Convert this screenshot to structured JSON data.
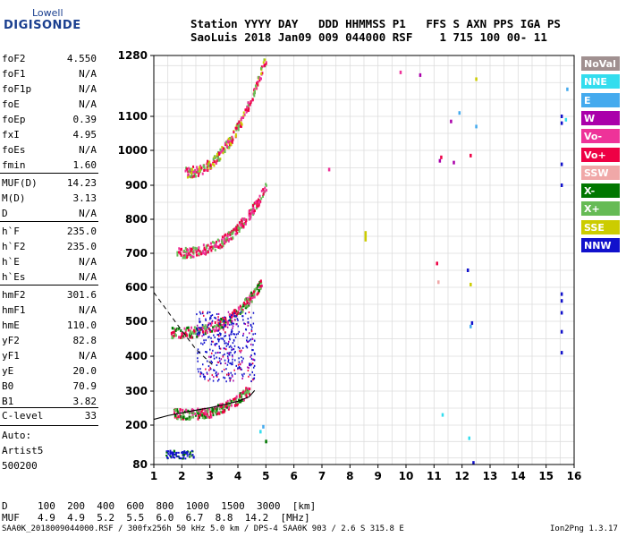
{
  "logo": {
    "top": "Lowell",
    "main": "DIGISONDE"
  },
  "header": {
    "line1": "Station YYYY DAY   DDD HHMMSS P1   FFS S AXN PPS IGA PS",
    "line2": "SaoLuis 2018 Jan09 009 044000 RSF    1 715 100 00- 11"
  },
  "params": [
    {
      "name": "foF2",
      "value": "4.550"
    },
    {
      "name": "foF1",
      "value": "N/A"
    },
    {
      "name": "foF1p",
      "value": "N/A"
    },
    {
      "name": "foE",
      "value": "N/A"
    },
    {
      "name": "foEp",
      "value": "0.39"
    },
    {
      "name": "fxI",
      "value": "4.95"
    },
    {
      "name": "foEs",
      "value": "N/A"
    },
    {
      "name": "fmin",
      "value": "1.60"
    },
    {
      "name": "MUF(D)",
      "value": "14.23"
    },
    {
      "name": "M(D)",
      "value": "3.13"
    },
    {
      "name": "D",
      "value": "N/A"
    },
    {
      "name": "h`F",
      "value": "235.0"
    },
    {
      "name": "h`F2",
      "value": "235.0"
    },
    {
      "name": "h`E",
      "value": "N/A"
    },
    {
      "name": "h`Es",
      "value": "N/A"
    },
    {
      "name": "hmF2",
      "value": "301.6"
    },
    {
      "name": "hmF1",
      "value": "N/A"
    },
    {
      "name": "hmE",
      "value": "110.0"
    },
    {
      "name": "yF2",
      "value": "82.8"
    },
    {
      "name": "yF1",
      "value": "N/A"
    },
    {
      "name": "yE",
      "value": "20.0"
    },
    {
      "name": "B0",
      "value": "70.9"
    },
    {
      "name": "B1",
      "value": "3.82"
    }
  ],
  "clevel": {
    "name": "C-level",
    "value": "33"
  },
  "auto": [
    "Auto:",
    "Artist5",
    "500200"
  ],
  "legend": [
    {
      "label": "NoVal",
      "color": "#a09090"
    },
    {
      "label": "NNE",
      "color": "#33ddee"
    },
    {
      "label": "E",
      "color": "#44aaee"
    },
    {
      "label": "W",
      "color": "#aa00aa"
    },
    {
      "label": "Vo-",
      "color": "#ee3399"
    },
    {
      "label": "Vo+",
      "color": "#ee0044"
    },
    {
      "label": "SSW",
      "color": "#f0a8a8"
    },
    {
      "label": "X-",
      "color": "#007700"
    },
    {
      "label": "X+",
      "color": "#66bb55"
    },
    {
      "label": "SSE",
      "color": "#cccc00"
    },
    {
      "label": "NNW",
      "color": "#1111cc"
    }
  ],
  "muf_table": {
    "d_label": "D",
    "d_values": "100  200  400  600  800  1000  1500  3000  [km]",
    "muf_label": "MUF",
    "muf_values": "4.9  4.9  5.2  5.5  6.0  6.7  8.8  14.2  [MHz]"
  },
  "footer": {
    "left": "SAA0K_2018009044000.RSF / 300fx256h 50 kHz 5.0 km / DPS-4 SAA0K 903 / 2.6 S 315.8 E",
    "right": "Ion2Png 1.3.17"
  },
  "chart_data": {
    "type": "scatter",
    "title": "",
    "xlabel": "",
    "ylabel": "",
    "xlim": [
      1,
      16
    ],
    "ylim": [
      80,
      1280
    ],
    "x_ticks": [
      1,
      2,
      3,
      4,
      5,
      6,
      7,
      8,
      9,
      10,
      11,
      12,
      13,
      14,
      15,
      16
    ],
    "y_ticks": [
      80,
      200,
      300,
      400,
      500,
      600,
      700,
      800,
      900,
      1000,
      1100,
      1280
    ],
    "grid": true,
    "legend_position": "right",
    "series": [
      {
        "name": "NNE",
        "points": [
          [
            12.25,
            160
          ],
          [
            4.8,
            180
          ],
          [
            15.7,
            1090
          ],
          [
            11.3,
            230
          ]
        ]
      },
      {
        "name": "E",
        "points": [
          [
            12.5,
            1070
          ],
          [
            15.75,
            1180
          ],
          [
            11.9,
            1110
          ],
          [
            4.9,
            195
          ],
          [
            12.3,
            485
          ]
        ]
      },
      {
        "name": "W",
        "points": [
          [
            10.5,
            1222
          ],
          [
            11.6,
            1085
          ],
          [
            11.7,
            965
          ],
          [
            11.2,
            970
          ]
        ]
      },
      {
        "name": "Vo-",
        "points": [
          [
            9.8,
            1230
          ],
          [
            7.25,
            945
          ]
        ]
      },
      {
        "name": "Vo+",
        "points": [
          [
            11.25,
            980
          ],
          [
            11.1,
            670
          ],
          [
            12.3,
            985
          ]
        ]
      },
      {
        "name": "SSW",
        "points": [
          [
            11.15,
            615
          ]
        ]
      },
      {
        "name": "X-",
        "points": [
          [
            5.0,
            150
          ]
        ]
      },
      {
        "name": "SSE",
        "points": [
          [
            12.5,
            1210
          ],
          [
            8.55,
            740
          ],
          [
            8.55,
            760
          ],
          [
            8.55,
            750
          ],
          [
            12.3,
            608
          ]
        ]
      },
      {
        "name": "NNW",
        "points": [
          [
            15.55,
            1100
          ],
          [
            15.55,
            1080
          ],
          [
            15.55,
            960
          ],
          [
            15.55,
            900
          ],
          [
            15.55,
            580
          ],
          [
            15.55,
            560
          ],
          [
            15.55,
            525
          ],
          [
            15.55,
            470
          ],
          [
            15.55,
            410
          ],
          [
            12.2,
            650
          ],
          [
            12.35,
            495
          ],
          [
            12.4,
            85
          ]
        ]
      }
    ],
    "profile_curve": [
      [
        1,
        217
      ],
      [
        1.5,
        228
      ],
      [
        2,
        236
      ],
      [
        2.5,
        244
      ],
      [
        3,
        251
      ],
      [
        3.5,
        260
      ],
      [
        4,
        270
      ],
      [
        4.4,
        283
      ],
      [
        4.6,
        302
      ]
    ],
    "dashed_segment": [
      [
        1,
        585
      ],
      [
        1.8,
        495
      ],
      [
        2.5,
        420
      ],
      [
        3.1,
        375
      ]
    ]
  }
}
